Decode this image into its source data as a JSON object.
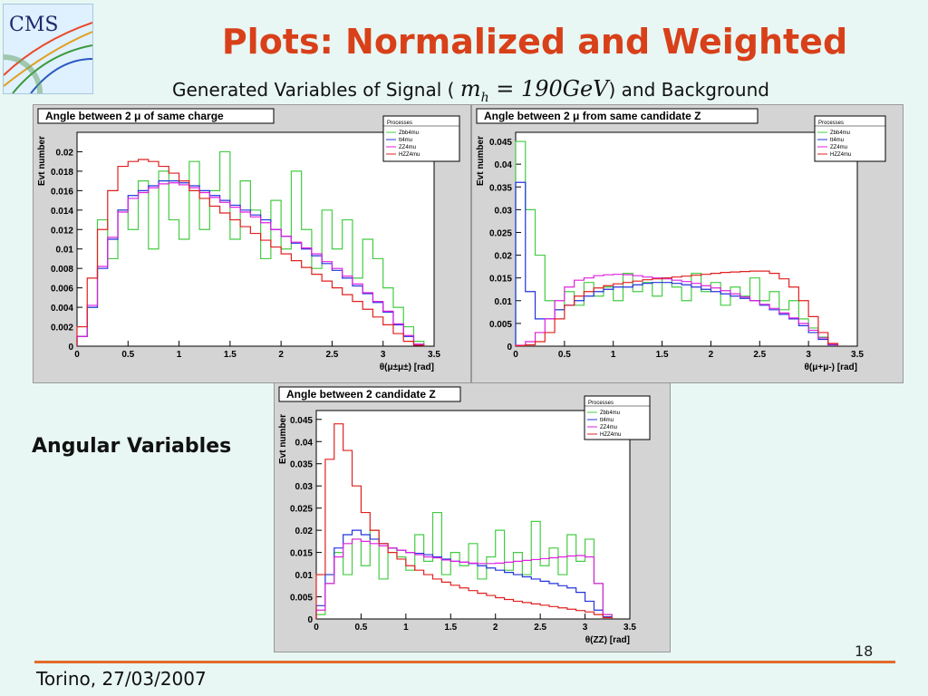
{
  "slide": {
    "title": "Plots: Normalized and Weighted",
    "subtitle_pre": "Generated Variables of Signal (",
    "subtitle_math": "m",
    "subtitle_math_sub": "h",
    "subtitle_math_rest": " = 190GeV",
    "subtitle_post": ") and Background",
    "side_label": "Angular Variables",
    "footer": "Torino, 27/03/2007",
    "page_number": "18",
    "logo_text": "CMS",
    "colors": {
      "title": "#d8401a",
      "footer_line": "#e36b2a",
      "background": "#e8f7f3"
    }
  },
  "chart_data": [
    {
      "type": "line",
      "title": "Angle between 2 μ of same charge",
      "xlabel": "θ(μ±μ±) [rad]",
      "ylabel": "Evt number",
      "xlim": [
        0,
        3.5
      ],
      "ylim": [
        0,
        0.022
      ],
      "x_ticks": [
        "0",
        "0.5",
        "1",
        "1.5",
        "2",
        "2.5",
        "3",
        "3.5"
      ],
      "y_ticks": [
        "0",
        "0.002",
        "0.004",
        "0.006",
        "0.008",
        "0.01",
        "0.012",
        "0.014",
        "0.016",
        "0.018",
        "0.02"
      ],
      "legend_title": "Processes",
      "legend_position": "top-right",
      "x": [
        0,
        0.1,
        0.2,
        0.3,
        0.4,
        0.5,
        0.6,
        0.7,
        0.8,
        0.9,
        1.0,
        1.1,
        1.2,
        1.3,
        1.4,
        1.5,
        1.6,
        1.7,
        1.8,
        1.9,
        2.0,
        2.1,
        2.2,
        2.3,
        2.4,
        2.5,
        2.6,
        2.7,
        2.8,
        2.9,
        3.0,
        3.1,
        3.2,
        3.3
      ],
      "series": [
        {
          "name": "Zbb4mu",
          "color": "#44cc44",
          "values": [
            0.001,
            0.004,
            0.013,
            0.009,
            0.014,
            0.012,
            0.017,
            0.01,
            0.018,
            0.013,
            0.011,
            0.019,
            0.012,
            0.016,
            0.02,
            0.011,
            0.017,
            0.014,
            0.009,
            0.015,
            0.01,
            0.018,
            0.012,
            0.008,
            0.014,
            0.01,
            0.013,
            0.007,
            0.011,
            0.009,
            0.006,
            0.004,
            0.002,
            0.0005
          ]
        },
        {
          "name": "tt4mu",
          "color": "#2233dd",
          "values": [
            0.001,
            0.004,
            0.008,
            0.011,
            0.014,
            0.0155,
            0.016,
            0.0165,
            0.017,
            0.017,
            0.0168,
            0.0165,
            0.016,
            0.0155,
            0.015,
            0.0145,
            0.014,
            0.0135,
            0.013,
            0.012,
            0.0113,
            0.0106,
            0.01,
            0.0093,
            0.0085,
            0.0078,
            0.007,
            0.0062,
            0.0054,
            0.0045,
            0.0035,
            0.0022,
            0.001,
            0.0002
          ]
        },
        {
          "name": "ZZ4mu",
          "color": "#dd22dd",
          "values": [
            0.001,
            0.0042,
            0.0082,
            0.0112,
            0.0138,
            0.0152,
            0.0158,
            0.0163,
            0.0167,
            0.0168,
            0.0166,
            0.0163,
            0.0158,
            0.0153,
            0.0148,
            0.0143,
            0.0138,
            0.0133,
            0.0127,
            0.012,
            0.0113,
            0.0107,
            0.0101,
            0.0095,
            0.0087,
            0.008,
            0.0072,
            0.0064,
            0.0055,
            0.0046,
            0.0036,
            0.0023,
            0.0011,
            0.0002
          ]
        },
        {
          "name": "HZZ4mu",
          "color": "#e02020",
          "values": [
            0.002,
            0.007,
            0.012,
            0.016,
            0.0185,
            0.019,
            0.0192,
            0.019,
            0.0185,
            0.0178,
            0.017,
            0.016,
            0.0152,
            0.0144,
            0.0137,
            0.013,
            0.0123,
            0.0116,
            0.0109,
            0.0102,
            0.0095,
            0.0088,
            0.0081,
            0.0074,
            0.0067,
            0.006,
            0.0053,
            0.0046,
            0.0038,
            0.003,
            0.0022,
            0.0013,
            0.0005,
            0.0001
          ]
        }
      ]
    },
    {
      "type": "line",
      "title": "Angle between 2 μ from same candidate Z",
      "xlabel": "θ(μ+μ-) [rad]",
      "ylabel": "Evt number",
      "xlim": [
        0,
        3.5
      ],
      "ylim": [
        0,
        0.047
      ],
      "x_ticks": [
        "0",
        "0.5",
        "1",
        "1.5",
        "2",
        "2.5",
        "3",
        "3.5"
      ],
      "y_ticks": [
        "0",
        "0.005",
        "0.01",
        "0.015",
        "0.02",
        "0.025",
        "0.03",
        "0.035",
        "0.04",
        "0.045"
      ],
      "legend_title": "Processes",
      "legend_position": "top-right",
      "x": [
        0,
        0.1,
        0.2,
        0.3,
        0.4,
        0.5,
        0.6,
        0.7,
        0.8,
        0.9,
        1.0,
        1.1,
        1.2,
        1.3,
        1.4,
        1.5,
        1.6,
        1.7,
        1.8,
        1.9,
        2.0,
        2.1,
        2.2,
        2.3,
        2.4,
        2.5,
        2.6,
        2.7,
        2.8,
        2.9,
        3.0,
        3.1,
        3.2
      ],
      "series": [
        {
          "name": "Zbb4mu",
          "color": "#44cc44",
          "values": [
            0.045,
            0.03,
            0.02,
            0.01,
            0.008,
            0.012,
            0.009,
            0.014,
            0.011,
            0.013,
            0.01,
            0.016,
            0.012,
            0.014,
            0.011,
            0.015,
            0.013,
            0.01,
            0.016,
            0.012,
            0.014,
            0.009,
            0.013,
            0.011,
            0.015,
            0.01,
            0.012,
            0.008,
            0.01,
            0.006,
            0.004,
            0.002,
            0.0005
          ]
        },
        {
          "name": "tt4mu",
          "color": "#2233dd",
          "values": [
            0.036,
            0.012,
            0.006,
            0.006,
            0.008,
            0.009,
            0.01,
            0.011,
            0.012,
            0.0125,
            0.013,
            0.013,
            0.0135,
            0.0138,
            0.014,
            0.014,
            0.0138,
            0.0135,
            0.013,
            0.0125,
            0.012,
            0.0115,
            0.011,
            0.0105,
            0.01,
            0.009,
            0.008,
            0.007,
            0.006,
            0.0045,
            0.003,
            0.0015,
            0.0003
          ]
        },
        {
          "name": "ZZ4mu",
          "color": "#dd22dd",
          "values": [
            0.0002,
            0.001,
            0.003,
            0.006,
            0.01,
            0.013,
            0.0145,
            0.015,
            0.0155,
            0.0157,
            0.0158,
            0.0157,
            0.0155,
            0.0152,
            0.015,
            0.0148,
            0.0145,
            0.0142,
            0.0138,
            0.0133,
            0.0128,
            0.0122,
            0.0115,
            0.0108,
            0.01,
            0.0092,
            0.0083,
            0.0073,
            0.0062,
            0.005,
            0.0035,
            0.0018,
            0.0004
          ]
        },
        {
          "name": "HZZ4mu",
          "color": "#e02020",
          "values": [
            0.0001,
            0.0003,
            0.001,
            0.003,
            0.006,
            0.009,
            0.011,
            0.012,
            0.0128,
            0.0133,
            0.0137,
            0.014,
            0.0143,
            0.0146,
            0.0148,
            0.015,
            0.0152,
            0.0154,
            0.0156,
            0.0158,
            0.016,
            0.0162,
            0.0163,
            0.0164,
            0.0165,
            0.0165,
            0.016,
            0.0148,
            0.013,
            0.01,
            0.0065,
            0.003,
            0.0006
          ]
        }
      ]
    },
    {
      "type": "line",
      "title": "Angle between 2 candidate Z",
      "xlabel": "θ(ZZ) [rad]",
      "ylabel": "Evt number",
      "xlim": [
        0,
        3.5
      ],
      "ylim": [
        0,
        0.047
      ],
      "x_ticks": [
        "0",
        "0.5",
        "1",
        "1.5",
        "2",
        "2.5",
        "3",
        "3.5"
      ],
      "y_ticks": [
        "0",
        "0.005",
        "0.01",
        "0.015",
        "0.02",
        "0.025",
        "0.03",
        "0.035",
        "0.04",
        "0.045"
      ],
      "legend_title": "Processes",
      "legend_position": "top-right",
      "x": [
        0,
        0.1,
        0.2,
        0.3,
        0.4,
        0.5,
        0.6,
        0.7,
        0.8,
        0.9,
        1.0,
        1.1,
        1.2,
        1.3,
        1.4,
        1.5,
        1.6,
        1.7,
        1.8,
        1.9,
        2.0,
        2.1,
        2.2,
        2.3,
        2.4,
        2.5,
        2.6,
        2.7,
        2.8,
        2.9,
        3.0,
        3.1,
        3.2
      ],
      "series": [
        {
          "name": "Zbb4mu",
          "color": "#44cc44",
          "values": [
            0.001,
            0.008,
            0.015,
            0.01,
            0.018,
            0.012,
            0.02,
            0.009,
            0.016,
            0.014,
            0.011,
            0.019,
            0.013,
            0.024,
            0.01,
            0.015,
            0.012,
            0.017,
            0.009,
            0.014,
            0.02,
            0.011,
            0.015,
            0.01,
            0.022,
            0.012,
            0.016,
            0.01,
            0.019,
            0.013,
            0.018,
            0.008,
            0.001
          ]
        },
        {
          "name": "tt4mu",
          "color": "#2233dd",
          "values": [
            0.003,
            0.01,
            0.016,
            0.019,
            0.02,
            0.019,
            0.018,
            0.017,
            0.016,
            0.0155,
            0.015,
            0.0148,
            0.0145,
            0.014,
            0.0135,
            0.013,
            0.0128,
            0.0125,
            0.012,
            0.0115,
            0.011,
            0.0105,
            0.01,
            0.0095,
            0.009,
            0.0085,
            0.008,
            0.0075,
            0.007,
            0.006,
            0.004,
            0.002,
            0.0005
          ]
        },
        {
          "name": "ZZ4mu",
          "color": "#dd22dd",
          "values": [
            0.002,
            0.008,
            0.014,
            0.017,
            0.018,
            0.0175,
            0.017,
            0.0165,
            0.016,
            0.0155,
            0.015,
            0.0145,
            0.014,
            0.0138,
            0.0133,
            0.013,
            0.0128,
            0.0126,
            0.0125,
            0.0125,
            0.0126,
            0.0128,
            0.013,
            0.0132,
            0.0134,
            0.0136,
            0.0138,
            0.014,
            0.0142,
            0.0143,
            0.014,
            0.008,
            0.001
          ]
        },
        {
          "name": "HZZ4mu",
          "color": "#e02020",
          "values": [
            0.01,
            0.036,
            0.044,
            0.038,
            0.03,
            0.024,
            0.02,
            0.017,
            0.015,
            0.0135,
            0.012,
            0.011,
            0.01,
            0.009,
            0.0083,
            0.0076,
            0.007,
            0.0064,
            0.0058,
            0.0053,
            0.0048,
            0.0044,
            0.004,
            0.0037,
            0.0034,
            0.0031,
            0.0028,
            0.0025,
            0.0022,
            0.0019,
            0.0016,
            0.001,
            0.0003
          ]
        }
      ]
    }
  ]
}
